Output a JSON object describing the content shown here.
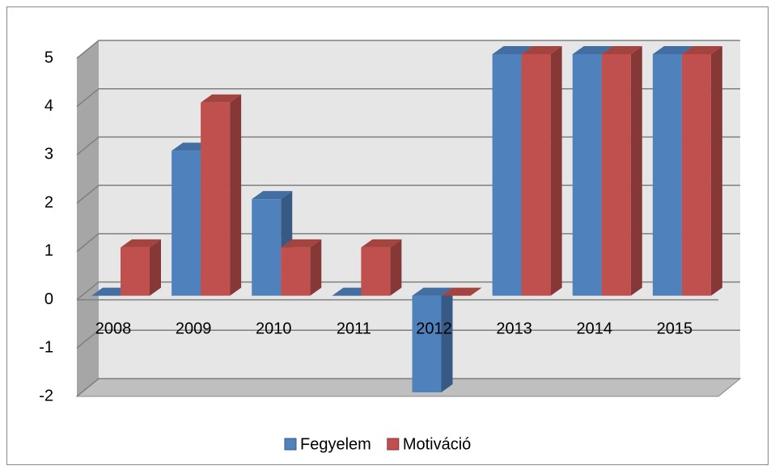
{
  "chart_data": {
    "type": "bar3d",
    "categories": [
      "2008",
      "2009",
      "2010",
      "2011",
      "2012",
      "2013",
      "2014",
      "2015"
    ],
    "series": [
      {
        "name": "Fegyelem",
        "color": "#4f81bd",
        "values": [
          0,
          3,
          2,
          0,
          -2,
          5,
          5,
          5
        ]
      },
      {
        "name": "Motiváció",
        "color": "#c0504d",
        "values": [
          1,
          4,
          1,
          1,
          0,
          5,
          5,
          5
        ]
      }
    ],
    "ylim": [
      -2,
      5
    ],
    "yticks": [
      -2,
      -1,
      0,
      1,
      2,
      3,
      4,
      5
    ],
    "grid": true,
    "legend": "bottom"
  }
}
